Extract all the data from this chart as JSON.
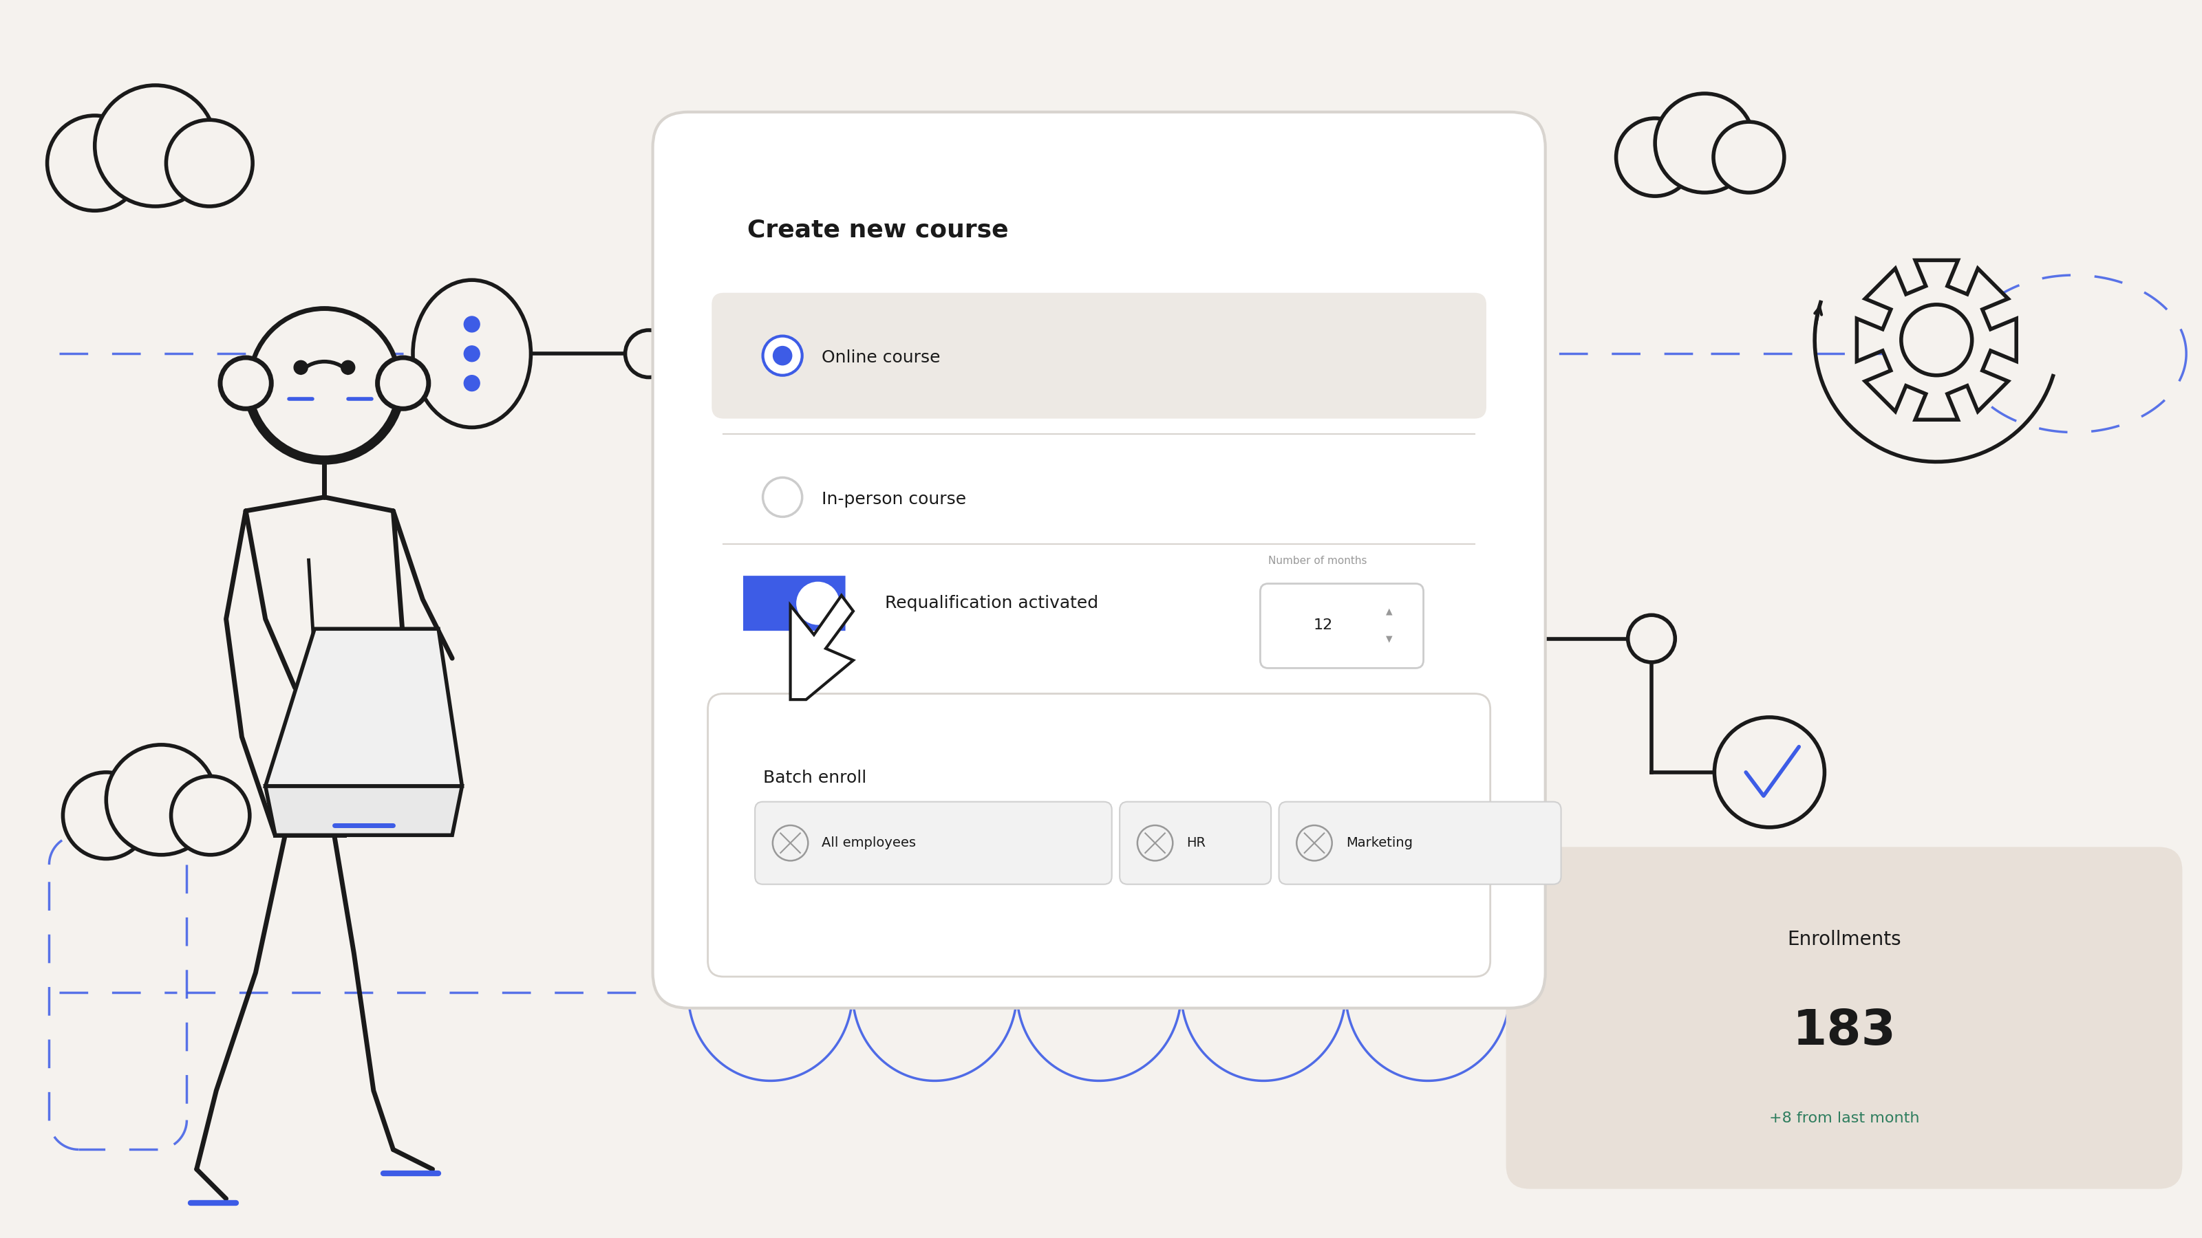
{
  "bg_color": "#f5f2ee",
  "card_color": "#ffffff",
  "card_border": "#d8d4cf",
  "title": "Create new course",
  "title_fontsize": 28,
  "option1": "Online course",
  "option2": "In-person course",
  "option1_bg": "#ede9e4",
  "requalif_label": "Requalification activated",
  "months_label": "Number of months",
  "months_value": "12",
  "batch_label": "Batch enroll",
  "batch_tags": [
    "All employees",
    "HR",
    "Marketing"
  ],
  "enrollments_label": "Enrollments",
  "enrollments_value": "183",
  "enrollments_change": "+8 from last month",
  "enrollments_card_color": "#e8e0d8",
  "enrollments_change_color": "#2e7d5e",
  "blue_color": "#3d5ce6",
  "dark_color": "#1a1a1a",
  "gray_color": "#999999",
  "light_gray": "#cccccc",
  "tag_bg": "#f2f2f2",
  "tag_border": "#d0d0d0"
}
